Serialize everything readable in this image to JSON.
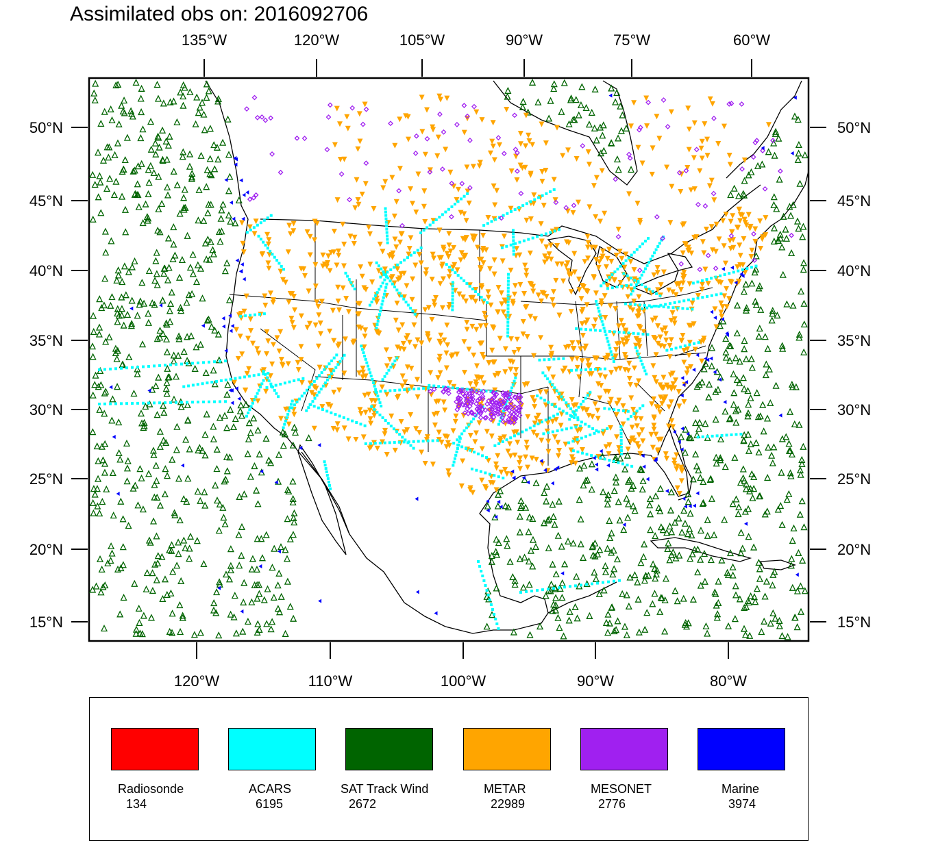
{
  "title": "Assimilated obs on: 2016092706",
  "map": {
    "top_lon_labels": [
      "135°W",
      "120°W",
      "105°W",
      "90°W",
      "75°W",
      "60°W"
    ],
    "bottom_lon_labels": [
      "120°W",
      "110°W",
      "100°W",
      "90°W",
      "80°W"
    ],
    "lat_labels": [
      "50°N",
      "45°N",
      "40°N",
      "35°N",
      "30°N",
      "25°N",
      "20°N",
      "15°N"
    ]
  },
  "colors": {
    "radiosonde": "#ff0000",
    "acars": "#00ffff",
    "sat_track_wind": "#006400",
    "metar": "#ffa500",
    "mesonet": "#a020f0",
    "marine": "#0000ff"
  },
  "legend": [
    {
      "name": "Radiosonde",
      "count": "134",
      "color": "#ff0000"
    },
    {
      "name": "ACARS",
      "count": "6195",
      "color": "#00ffff"
    },
    {
      "name": "SAT Track Wind",
      "count": "2672",
      "color": "#006400"
    },
    {
      "name": "METAR",
      "count": "22989",
      "color": "#ffa500"
    },
    {
      "name": "MESONET",
      "count": "2776",
      "color": "#a020f0"
    },
    {
      "name": "Marine",
      "count": "3974",
      "color": "#0000ff"
    }
  ]
}
